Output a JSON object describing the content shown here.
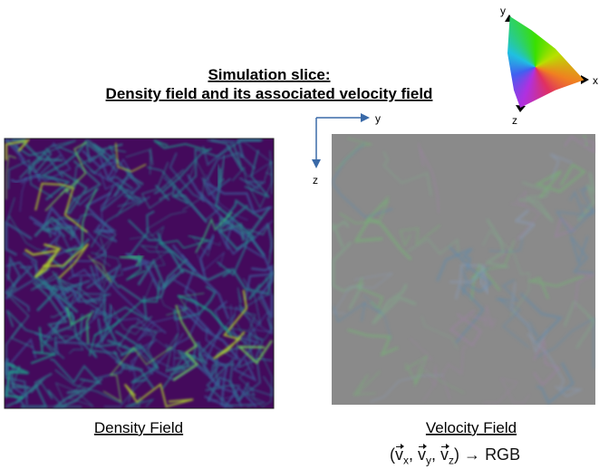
{
  "title": {
    "line1": "Simulation slice:",
    "line2": "Density field and its associated velocity field"
  },
  "axes": {
    "horizontal": "y",
    "vertical": "z"
  },
  "color_wheel": {
    "top": "y",
    "right": "x",
    "bottom": "z"
  },
  "panels": {
    "density": {
      "caption": "Density Field"
    },
    "velocity": {
      "caption": "Velocity Field"
    }
  },
  "formula": {
    "open": "(",
    "symbol": "v",
    "subscripts": [
      "x",
      "y",
      "z"
    ],
    "separator": ", ",
    "close": ")",
    "arrow": "→",
    "target": "RGB"
  }
}
